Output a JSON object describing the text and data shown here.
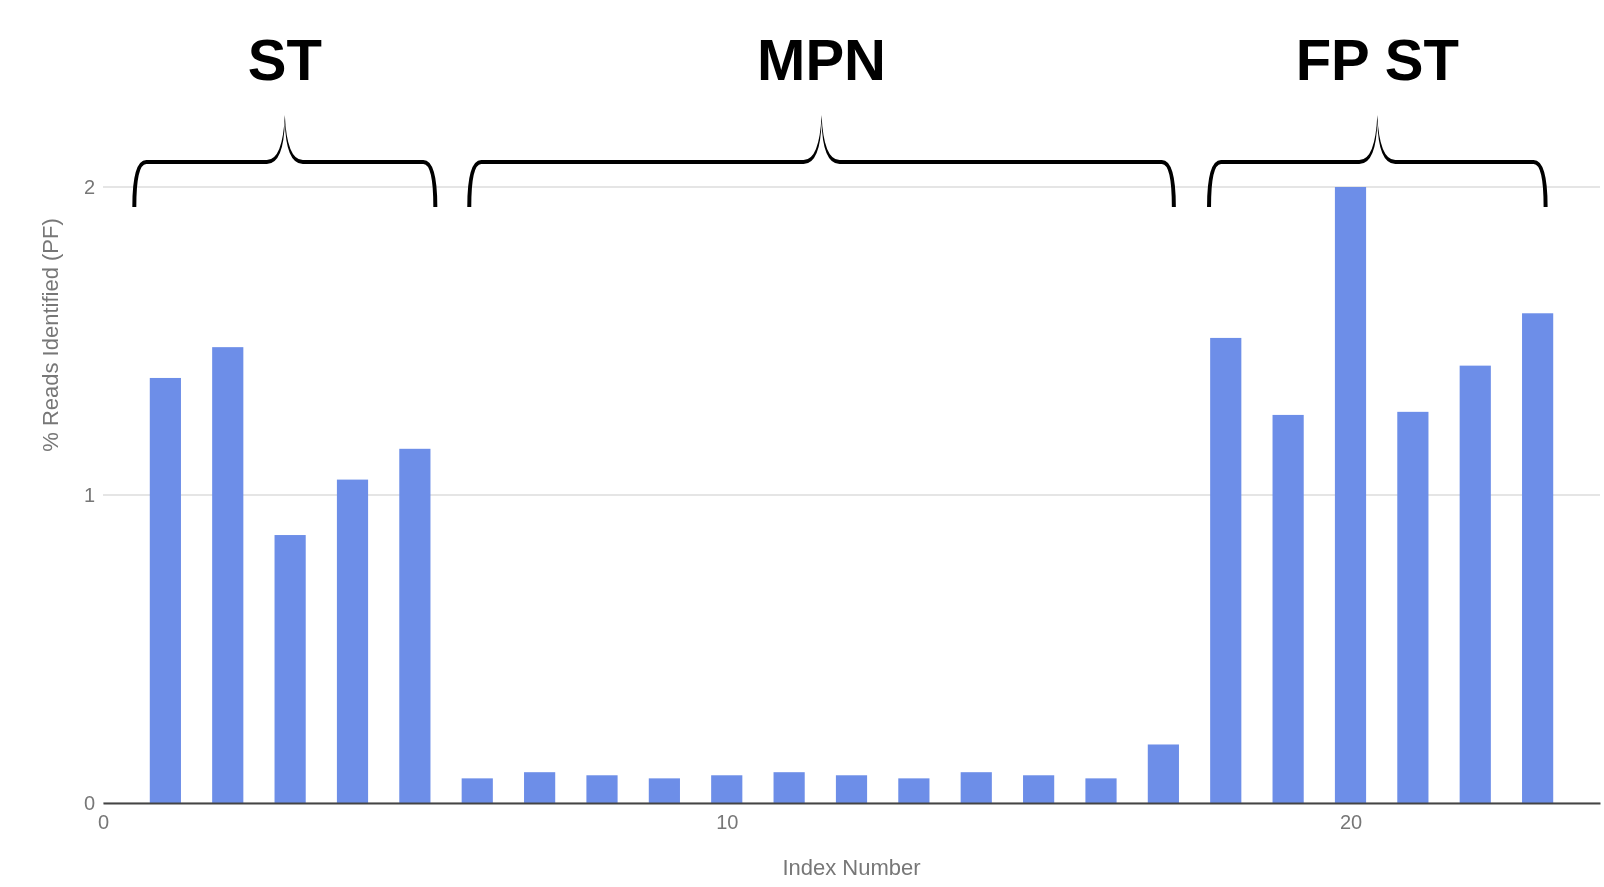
{
  "chart_data": {
    "type": "bar",
    "xlabel": "Index Number",
    "ylabel": "% Reads Identified (PF)",
    "x": [
      1,
      2,
      3,
      4,
      5,
      6,
      7,
      8,
      9,
      10,
      11,
      12,
      13,
      14,
      15,
      16,
      17,
      18,
      19,
      20,
      21,
      22,
      23
    ],
    "values": [
      1.38,
      1.48,
      0.87,
      1.05,
      1.15,
      0.08,
      0.1,
      0.09,
      0.08,
      0.09,
      0.1,
      0.09,
      0.08,
      0.1,
      0.09,
      0.08,
      0.19,
      1.51,
      1.26,
      2.0,
      1.27,
      1.42,
      1.59
    ],
    "color": "#6d8ee8",
    "xlim": [
      0,
      24
    ],
    "xticks": [
      0,
      10,
      20
    ],
    "ylim": [
      0,
      2
    ],
    "yticks": [
      0,
      1,
      2
    ],
    "grid": "y",
    "annotations": [
      "ST",
      "MPN",
      "FP ST"
    ]
  }
}
